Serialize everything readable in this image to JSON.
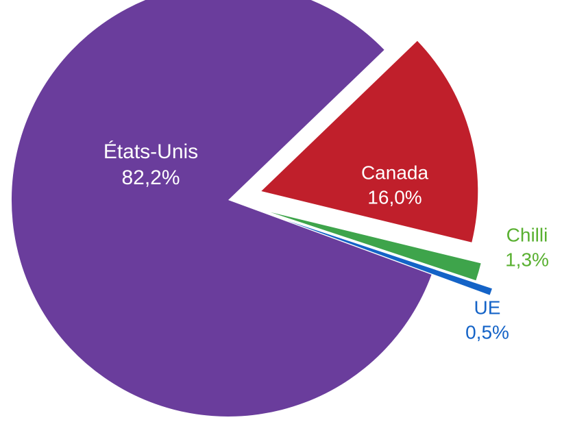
{
  "chart_data": {
    "type": "pie",
    "title": "",
    "legend": "none",
    "background": "#ffffff",
    "start_angle_deg": 20.16,
    "direction": "clockwise",
    "decimal_separator": ",",
    "values_are_percent": true,
    "slices": [
      {
        "label": "États-Unis",
        "value": 82.2,
        "value_label": "82,2%",
        "color": "#6a3d9c",
        "text_color": "#ffffff",
        "exploded": false,
        "label_position": "inside"
      },
      {
        "label": "Canada",
        "value": 16.0,
        "value_label": "16,0%",
        "color": "#c01f2b",
        "text_color": "#ffffff",
        "exploded": true,
        "label_position": "inside"
      },
      {
        "label": "Chilli",
        "value": 1.3,
        "value_label": "1,3%",
        "color": "#3ea44b",
        "text_color": "#59b031",
        "exploded": true,
        "label_position": "outside"
      },
      {
        "label": "UE",
        "value": 0.5,
        "value_label": "0,5%",
        "color": "#1463c7",
        "text_color": "#1463c7",
        "exploded": true,
        "label_position": "outside"
      }
    ]
  }
}
